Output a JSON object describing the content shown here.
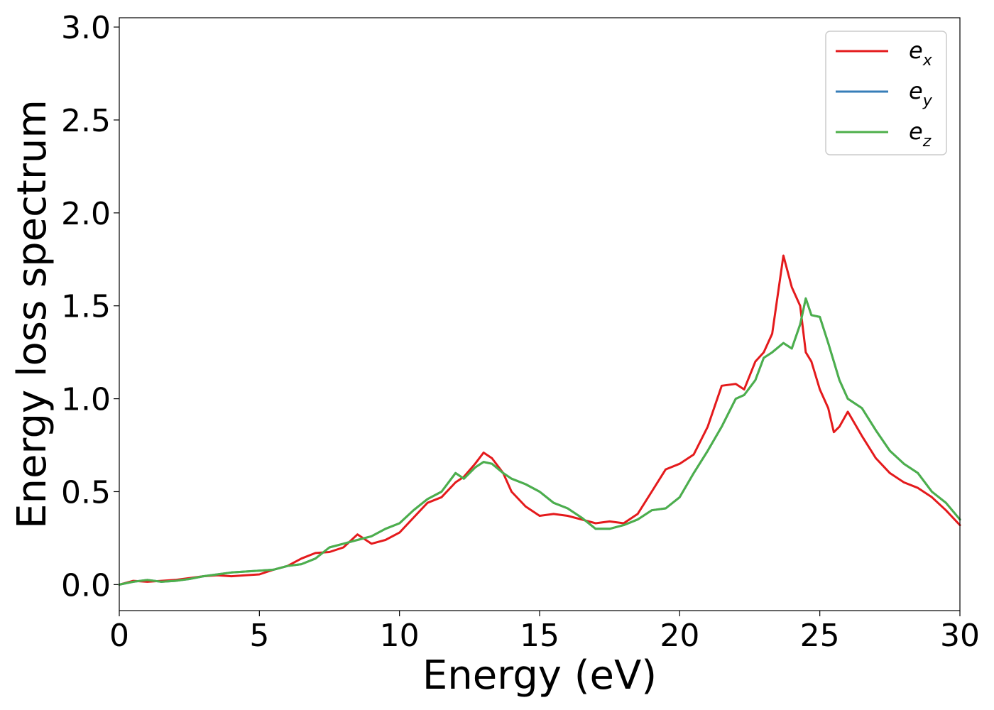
{
  "colors": {
    "ex": "#e41a1c",
    "ey": "#377eb8",
    "ez": "#4daf4a",
    "axis": "#000000",
    "legend_border": "#cccccc"
  },
  "chart_data": {
    "type": "line",
    "title": "",
    "xlabel": "Energy (eV)",
    "ylabel": "Energy loss spectrum",
    "xlim": [
      0,
      30
    ],
    "ylim": [
      -0.14,
      3.05
    ],
    "xticks": [
      0,
      5,
      10,
      15,
      20,
      25,
      30
    ],
    "yticks": [
      0.0,
      0.5,
      1.0,
      1.5,
      2.0,
      2.5,
      3.0
    ],
    "xtick_labels": [
      "0",
      "5",
      "10",
      "15",
      "20",
      "25",
      "30"
    ],
    "ytick_labels": [
      "0.0",
      "0.5",
      "1.0",
      "1.5",
      "2.0",
      "2.5",
      "3.0"
    ],
    "grid": false,
    "legend_position": "top-right",
    "series": [
      {
        "name": "e_x",
        "base": "e",
        "sub": "x",
        "color_key": "ex",
        "x": [
          0,
          0.5,
          1,
          1.5,
          2,
          2.5,
          3,
          3.5,
          4,
          4.5,
          5,
          5.5,
          6,
          6.5,
          7,
          7.5,
          8,
          8.5,
          9,
          9.5,
          10,
          10.5,
          11,
          11.5,
          12,
          12.3,
          12.7,
          13,
          13.3,
          13.7,
          14,
          14.5,
          15,
          15.5,
          16,
          16.5,
          17,
          17.5,
          18,
          18.5,
          19,
          19.5,
          20,
          20.5,
          21,
          21.5,
          22,
          22.3,
          22.7,
          23,
          23.3,
          23.7,
          24,
          24.3,
          24.5,
          24.7,
          25,
          25.3,
          25.5,
          25.7,
          26,
          26.5,
          27,
          27.5,
          28,
          28.5,
          29,
          29.5,
          30
        ],
        "y": [
          0,
          0.02,
          0.015,
          0.02,
          0.025,
          0.035,
          0.045,
          0.05,
          0.045,
          0.05,
          0.055,
          0.08,
          0.1,
          0.14,
          0.17,
          0.175,
          0.2,
          0.27,
          0.22,
          0.24,
          0.28,
          0.36,
          0.44,
          0.47,
          0.55,
          0.58,
          0.65,
          0.71,
          0.68,
          0.6,
          0.5,
          0.42,
          0.37,
          0.38,
          0.37,
          0.35,
          0.33,
          0.34,
          0.33,
          0.38,
          0.5,
          0.62,
          0.65,
          0.7,
          0.85,
          1.07,
          1.08,
          1.05,
          1.2,
          1.25,
          1.35,
          1.77,
          1.6,
          1.5,
          1.25,
          1.2,
          1.05,
          0.95,
          0.82,
          0.85,
          0.93,
          0.8,
          0.68,
          0.6,
          0.55,
          0.52,
          0.47,
          0.4,
          0.32
        ]
      },
      {
        "name": "e_y",
        "base": "e",
        "sub": "y",
        "color_key": "ey",
        "x": [
          0,
          0.5,
          1,
          1.5,
          2,
          2.5,
          3,
          3.5,
          4,
          4.5,
          5,
          5.5,
          6,
          6.5,
          7,
          7.5,
          8,
          8.5,
          9,
          9.5,
          10,
          10.5,
          11,
          11.5,
          12,
          12.3,
          12.7,
          13,
          13.3,
          13.7,
          14,
          14.5,
          15,
          15.5,
          16,
          16.5,
          17,
          17.5,
          18,
          18.5,
          19,
          19.5,
          20,
          20.5,
          21,
          21.5,
          22,
          22.3,
          22.7,
          23,
          23.3,
          23.7,
          24,
          24.3,
          24.5,
          24.7,
          25,
          25.3,
          25.5,
          25.7,
          26,
          26.5,
          27,
          27.5,
          28,
          28.5,
          29,
          29.5,
          30
        ],
        "y": [
          0,
          0.015,
          0.025,
          0.015,
          0.02,
          0.03,
          0.045,
          0.055,
          0.065,
          0.07,
          0.075,
          0.08,
          0.1,
          0.11,
          0.14,
          0.2,
          0.22,
          0.24,
          0.26,
          0.3,
          0.33,
          0.4,
          0.46,
          0.5,
          0.6,
          0.57,
          0.63,
          0.66,
          0.65,
          0.6,
          0.57,
          0.54,
          0.5,
          0.44,
          0.41,
          0.36,
          0.3,
          0.3,
          0.32,
          0.35,
          0.4,
          0.41,
          0.47,
          0.6,
          0.72,
          0.85,
          1.0,
          1.02,
          1.1,
          1.22,
          1.25,
          1.3,
          1.27,
          1.4,
          1.54,
          1.45,
          1.44,
          1.3,
          1.2,
          1.1,
          1.0,
          0.95,
          0.83,
          0.72,
          0.65,
          0.6,
          0.5,
          0.44,
          0.35
        ]
      },
      {
        "name": "e_z",
        "base": "e",
        "sub": "z",
        "color_key": "ez",
        "x": [
          0,
          0.5,
          1,
          1.5,
          2,
          2.5,
          3,
          3.5,
          4,
          4.5,
          5,
          5.5,
          6,
          6.5,
          7,
          7.5,
          8,
          8.5,
          9,
          9.5,
          10,
          10.5,
          11,
          11.5,
          12,
          12.3,
          12.7,
          13,
          13.3,
          13.7,
          14,
          14.5,
          15,
          15.5,
          16,
          16.5,
          17,
          17.5,
          18,
          18.5,
          19,
          19.5,
          20,
          20.5,
          21,
          21.5,
          22,
          22.3,
          22.7,
          23,
          23.3,
          23.7,
          24,
          24.3,
          24.5,
          24.7,
          25,
          25.3,
          25.5,
          25.7,
          26,
          26.5,
          27,
          27.5,
          28,
          28.5,
          29,
          29.5,
          30
        ],
        "y": [
          0,
          0.015,
          0.025,
          0.015,
          0.02,
          0.03,
          0.045,
          0.055,
          0.065,
          0.07,
          0.075,
          0.08,
          0.1,
          0.11,
          0.14,
          0.2,
          0.22,
          0.24,
          0.26,
          0.3,
          0.33,
          0.4,
          0.46,
          0.5,
          0.6,
          0.57,
          0.63,
          0.66,
          0.65,
          0.6,
          0.57,
          0.54,
          0.5,
          0.44,
          0.41,
          0.36,
          0.3,
          0.3,
          0.32,
          0.35,
          0.4,
          0.41,
          0.47,
          0.6,
          0.72,
          0.85,
          1.0,
          1.02,
          1.1,
          1.22,
          1.25,
          1.3,
          1.27,
          1.4,
          1.54,
          1.45,
          1.44,
          1.3,
          1.2,
          1.1,
          1.0,
          0.95,
          0.83,
          0.72,
          0.65,
          0.6,
          0.5,
          0.44,
          0.35
        ]
      }
    ]
  }
}
